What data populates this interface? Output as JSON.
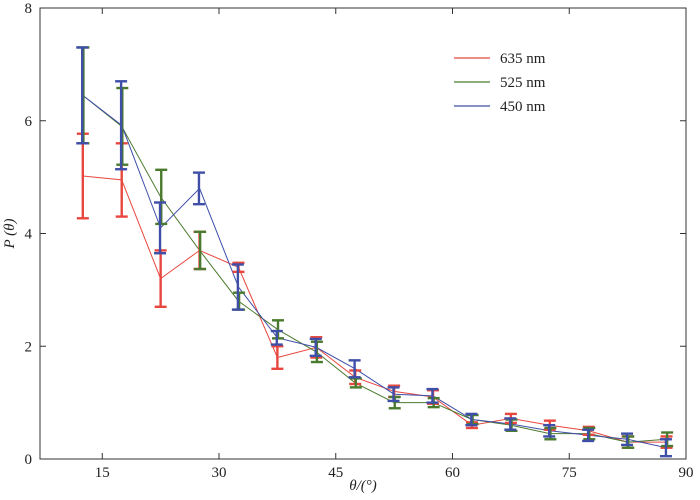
{
  "chart_data": {
    "type": "line",
    "title": "",
    "xlabel": "θ/(°)",
    "ylabel": "P (θ)",
    "xlim": [
      7,
      90
    ],
    "ylim": [
      0,
      8
    ],
    "xticks": [
      15,
      30,
      45,
      60,
      75,
      90
    ],
    "yticks": [
      0,
      2,
      4,
      6,
      8
    ],
    "xtick_labels": [
      "15",
      "30",
      "45",
      "60",
      "75",
      "90"
    ],
    "ytick_labels": [
      "0",
      "2",
      "4",
      "6",
      "8"
    ],
    "grid": false,
    "legend_position": "top-right",
    "x": [
      12.5,
      17.5,
      22.5,
      27.5,
      32.5,
      37.5,
      42.5,
      47.5,
      52.5,
      57.5,
      62.5,
      67.5,
      72.5,
      77.5,
      82.5,
      87.5
    ],
    "series": [
      {
        "name": "635 nm",
        "color": "#e8473f",
        "values": [
          5.02,
          4.95,
          3.2,
          3.7,
          3.4,
          1.8,
          1.98,
          1.45,
          1.2,
          1.1,
          0.6,
          0.72,
          0.6,
          0.5,
          0.3,
          0.3
        ],
        "errors": [
          0.75,
          0.65,
          0.5,
          0.33,
          0.08,
          0.2,
          0.18,
          0.12,
          0.1,
          0.12,
          0.05,
          0.08,
          0.08,
          0.07,
          0.1,
          0.1
        ]
      },
      {
        "name": "525 nm",
        "color": "#4a7a2e",
        "values": [
          6.45,
          5.9,
          4.65,
          3.7,
          2.8,
          2.3,
          1.9,
          1.35,
          1.0,
          1.0,
          0.7,
          0.6,
          0.45,
          0.45,
          0.3,
          0.35
        ],
        "errors": [
          0.85,
          0.68,
          0.48,
          0.33,
          0.15,
          0.16,
          0.18,
          0.08,
          0.1,
          0.08,
          0.08,
          0.1,
          0.1,
          0.1,
          0.1,
          0.12
        ]
      },
      {
        "name": "450 nm",
        "color": "#3f4fa8",
        "values": [
          6.45,
          5.92,
          4.1,
          4.8,
          3.05,
          2.15,
          1.98,
          1.6,
          1.15,
          1.12,
          0.7,
          0.62,
          0.5,
          0.42,
          0.35,
          0.2
        ],
        "errors": [
          0.85,
          0.78,
          0.45,
          0.28,
          0.4,
          0.12,
          0.15,
          0.15,
          0.12,
          0.12,
          0.1,
          0.1,
          0.1,
          0.1,
          0.1,
          0.15
        ]
      }
    ]
  }
}
